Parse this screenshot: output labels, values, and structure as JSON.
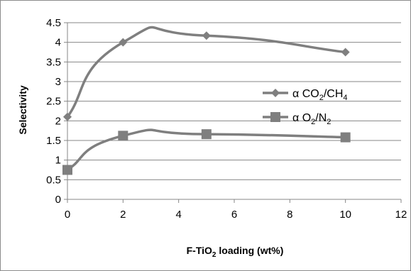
{
  "chart_data": {
    "type": "line",
    "title": "",
    "xlabel": "F-TiO₂ loading (wt%)",
    "xlabel_parts": {
      "pre": "F-TiO",
      "sub": "2",
      "post": " loading (wt%)"
    },
    "ylabel": "Selectivity",
    "xlim": [
      0,
      12
    ],
    "ylim": [
      0,
      4.5
    ],
    "x_ticks": [
      "0",
      "2",
      "4",
      "6",
      "8",
      "10",
      "12"
    ],
    "y_ticks": [
      "0",
      "0.5",
      "1",
      "1.5",
      "2",
      "2.5",
      "3",
      "3.5",
      "4",
      "4.5"
    ],
    "x_tick_values": [
      0,
      2,
      4,
      6,
      8,
      10,
      12
    ],
    "y_tick_values": [
      0,
      0.5,
      1,
      1.5,
      2,
      2.5,
      3,
      3.5,
      4,
      4.5
    ],
    "grid": {
      "horizontal": true,
      "vertical": false
    },
    "legend_position": "right",
    "series": [
      {
        "name": "α CO₂/CH₄",
        "label_parts": [
          {
            "t": "α CO",
            "sub": false
          },
          {
            "t": "2",
            "sub": true
          },
          {
            "t": "/CH",
            "sub": false
          },
          {
            "t": "4",
            "sub": true
          }
        ],
        "marker": "diamond",
        "color": "#7f7f7f",
        "x": [
          0,
          2,
          5,
          10
        ],
        "y": [
          2.1,
          4.0,
          4.17,
          3.75
        ]
      },
      {
        "name": "α O₂/N₂",
        "label_parts": [
          {
            "t": "α O",
            "sub": false
          },
          {
            "t": "2",
            "sub": true
          },
          {
            "t": "/N",
            "sub": false
          },
          {
            "t": "2",
            "sub": true
          }
        ],
        "marker": "square",
        "color": "#7f7f7f",
        "x": [
          0,
          2,
          5,
          10
        ],
        "y": [
          0.75,
          1.62,
          1.66,
          1.58
        ]
      }
    ]
  }
}
